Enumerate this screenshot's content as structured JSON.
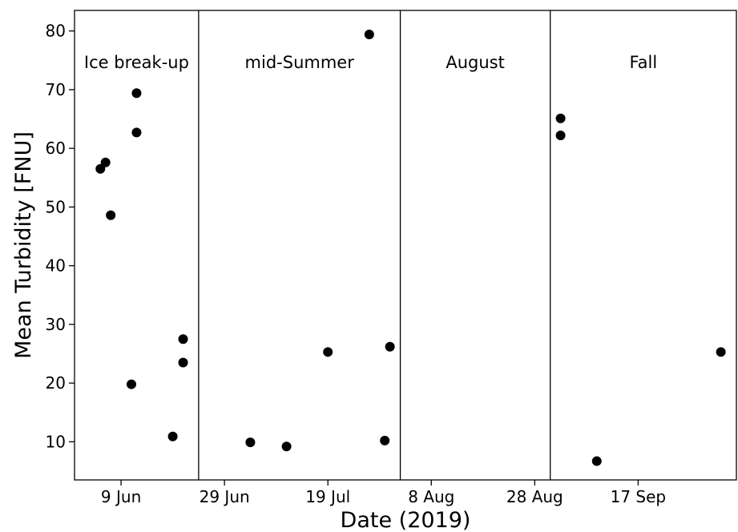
{
  "chart_data": {
    "type": "scatter",
    "title": "",
    "xlabel": "Date (2019)",
    "ylabel": "Mean Turbidity [FNU]",
    "x_type": "date",
    "xlim": [
      "2019-05-31",
      "2019-10-06"
    ],
    "ylim": [
      3.5,
      83.5
    ],
    "grid": false,
    "legend": "none",
    "marker_color": "#000000",
    "x_ticks": [
      {
        "date": "2019-06-09",
        "label": "9 Jun"
      },
      {
        "date": "2019-06-29",
        "label": "29 Jun"
      },
      {
        "date": "2019-07-19",
        "label": "19 Jul"
      },
      {
        "date": "2019-08-08",
        "label": "8 Aug"
      },
      {
        "date": "2019-08-28",
        "label": "28 Aug"
      },
      {
        "date": "2019-09-17",
        "label": "17 Sep"
      }
    ],
    "y_ticks": [
      10,
      20,
      30,
      40,
      50,
      60,
      70,
      80
    ],
    "phase_boundaries": [
      "2019-06-24",
      "2019-08-02",
      "2019-08-31"
    ],
    "phases": [
      {
        "label": "Ice break-up",
        "start": "2019-05-31",
        "end": "2019-06-24"
      },
      {
        "label": "mid-Summer",
        "start": "2019-06-24",
        "end": "2019-08-02"
      },
      {
        "label": "August",
        "start": "2019-08-02",
        "end": "2019-08-31"
      },
      {
        "label": "Fall",
        "start": "2019-08-31",
        "end": "2019-10-06"
      }
    ],
    "points": [
      {
        "x": "2019-06-05",
        "y": 56.5
      },
      {
        "x": "2019-06-06",
        "y": 57.6
      },
      {
        "x": "2019-06-07",
        "y": 48.6
      },
      {
        "x": "2019-06-11",
        "y": 19.8
      },
      {
        "x": "2019-06-12",
        "y": 69.4
      },
      {
        "x": "2019-06-12",
        "y": 62.7
      },
      {
        "x": "2019-06-19",
        "y": 10.9
      },
      {
        "x": "2019-06-21",
        "y": 27.5
      },
      {
        "x": "2019-06-21",
        "y": 23.5
      },
      {
        "x": "2019-07-04",
        "y": 9.9
      },
      {
        "x": "2019-07-11",
        "y": 9.2
      },
      {
        "x": "2019-07-19",
        "y": 25.3
      },
      {
        "x": "2019-07-27",
        "y": 79.4
      },
      {
        "x": "2019-07-30",
        "y": 10.2
      },
      {
        "x": "2019-07-31",
        "y": 26.2
      },
      {
        "x": "2019-09-02",
        "y": 65.1
      },
      {
        "x": "2019-09-02",
        "y": 62.2
      },
      {
        "x": "2019-09-09",
        "y": 6.7
      },
      {
        "x": "2019-10-03",
        "y": 25.3
      }
    ]
  }
}
